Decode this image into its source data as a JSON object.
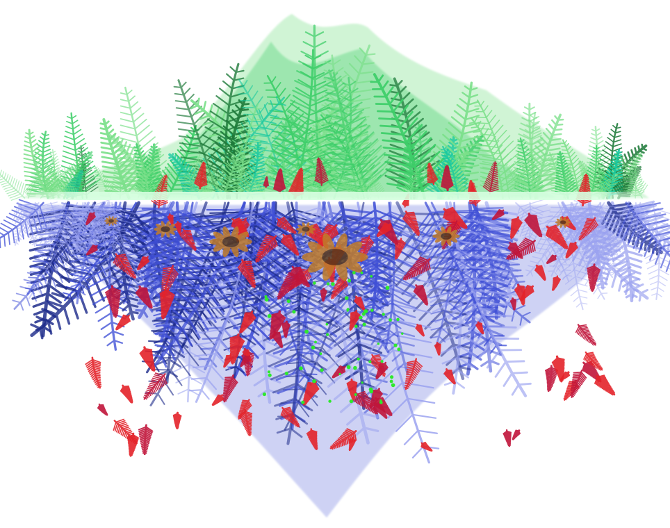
{
  "image": {
    "subject": "fractal-fern-reflection",
    "colors": {
      "background": "#ffffff",
      "upper_light": "#7be08a",
      "upper_mid": "#3fcf6a",
      "upper_dark": "#1e7a3a",
      "upper_teal": "#17c9a0",
      "horizon": "#c8ffd6",
      "lower_light": "#9aa2f0",
      "lower_mid": "#3f4fd6",
      "lower_dark": "#1c2a8a",
      "spike_red": "#e4232a",
      "spike_crimson": "#c0153a",
      "flower_brown": "#c07c2a",
      "flower_center": "#5a3a1a",
      "speck_green": "#2ee82e"
    }
  }
}
